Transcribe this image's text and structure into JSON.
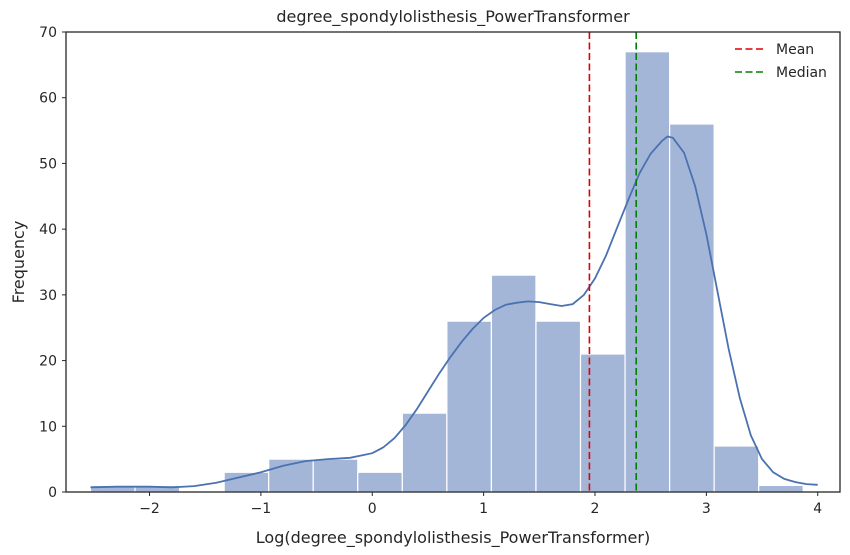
{
  "chart_data": {
    "type": "histogram",
    "title": "degree_spondylolisthesis_PowerTransformer",
    "xlabel": "Log(degree_spondylolisthesis_PowerTransformer)",
    "ylabel": "Frequency",
    "xlim": [
      -2.75,
      4.2
    ],
    "ylim": [
      0,
      70
    ],
    "xticks": [
      -2,
      -1,
      0,
      1,
      2,
      3,
      4
    ],
    "xtick_labels": [
      "−2",
      "−1",
      "0",
      "1",
      "2",
      "3",
      "4"
    ],
    "yticks": [
      0,
      10,
      20,
      30,
      40,
      50,
      60,
      70
    ],
    "bins": [
      {
        "x0": -2.53,
        "x1": -2.13,
        "count": 1
      },
      {
        "x0": -2.13,
        "x1": -1.73,
        "count": 1
      },
      {
        "x0": -1.73,
        "x1": -1.33,
        "count": 0
      },
      {
        "x0": -1.33,
        "x1": -0.93,
        "count": 3
      },
      {
        "x0": -0.93,
        "x1": -0.53,
        "count": 5
      },
      {
        "x0": -0.53,
        "x1": -0.13,
        "count": 5
      },
      {
        "x0": -0.13,
        "x1": 0.27,
        "count": 3
      },
      {
        "x0": 0.27,
        "x1": 0.67,
        "count": 12
      },
      {
        "x0": 0.67,
        "x1": 1.07,
        "count": 26
      },
      {
        "x0": 1.07,
        "x1": 1.47,
        "count": 33
      },
      {
        "x0": 1.47,
        "x1": 1.87,
        "count": 26
      },
      {
        "x0": 1.87,
        "x1": 2.27,
        "count": 21
      },
      {
        "x0": 2.27,
        "x1": 2.67,
        "count": 67
      },
      {
        "x0": 2.67,
        "x1": 3.07,
        "count": 56
      },
      {
        "x0": 3.07,
        "x1": 3.47,
        "count": 7
      },
      {
        "x0": 3.47,
        "x1": 3.87,
        "count": 1
      }
    ],
    "kde": [
      [
        -2.53,
        0.7
      ],
      [
        -2.3,
        0.8
      ],
      [
        -2.0,
        0.8
      ],
      [
        -1.8,
        0.7
      ],
      [
        -1.6,
        0.9
      ],
      [
        -1.4,
        1.4
      ],
      [
        -1.2,
        2.2
      ],
      [
        -1.0,
        3.0
      ],
      [
        -0.8,
        4.0
      ],
      [
        -0.6,
        4.7
      ],
      [
        -0.4,
        5.0
      ],
      [
        -0.2,
        5.2
      ],
      [
        0.0,
        5.9
      ],
      [
        0.1,
        6.8
      ],
      [
        0.2,
        8.2
      ],
      [
        0.3,
        10.2
      ],
      [
        0.4,
        12.6
      ],
      [
        0.5,
        15.3
      ],
      [
        0.6,
        18.0
      ],
      [
        0.7,
        20.5
      ],
      [
        0.8,
        22.8
      ],
      [
        0.9,
        24.8
      ],
      [
        1.0,
        26.5
      ],
      [
        1.1,
        27.7
      ],
      [
        1.2,
        28.5
      ],
      [
        1.3,
        28.8
      ],
      [
        1.4,
        29.0
      ],
      [
        1.5,
        28.9
      ],
      [
        1.6,
        28.6
      ],
      [
        1.7,
        28.3
      ],
      [
        1.8,
        28.6
      ],
      [
        1.9,
        30.0
      ],
      [
        2.0,
        32.5
      ],
      [
        2.1,
        36.0
      ],
      [
        2.2,
        40.3
      ],
      [
        2.3,
        44.5
      ],
      [
        2.4,
        48.5
      ],
      [
        2.5,
        51.5
      ],
      [
        2.6,
        53.4
      ],
      [
        2.65,
        54.1
      ],
      [
        2.7,
        53.9
      ],
      [
        2.8,
        51.6
      ],
      [
        2.9,
        46.5
      ],
      [
        3.0,
        39.2
      ],
      [
        3.1,
        30.5
      ],
      [
        3.2,
        21.8
      ],
      [
        3.3,
        14.3
      ],
      [
        3.4,
        8.6
      ],
      [
        3.5,
        5.0
      ],
      [
        3.6,
        3.0
      ],
      [
        3.7,
        2.0
      ],
      [
        3.8,
        1.5
      ],
      [
        3.9,
        1.2
      ],
      [
        4.0,
        1.1
      ]
    ],
    "mean": 1.95,
    "median": 2.37,
    "legend": {
      "position": "top-right",
      "entries": [
        {
          "label": "Mean",
          "color": "#e00000",
          "style": "dashed"
        },
        {
          "label": "Median",
          "color": "#008000",
          "style": "dashed"
        }
      ]
    },
    "colors": {
      "bar_fill": "#a4b6d8",
      "bar_edge": "#ffffff",
      "kde_line": "#4a72b0",
      "mean_line": "#e00000",
      "median_line": "#008000",
      "axes_edge": "#262626"
    },
    "grid": false
  }
}
